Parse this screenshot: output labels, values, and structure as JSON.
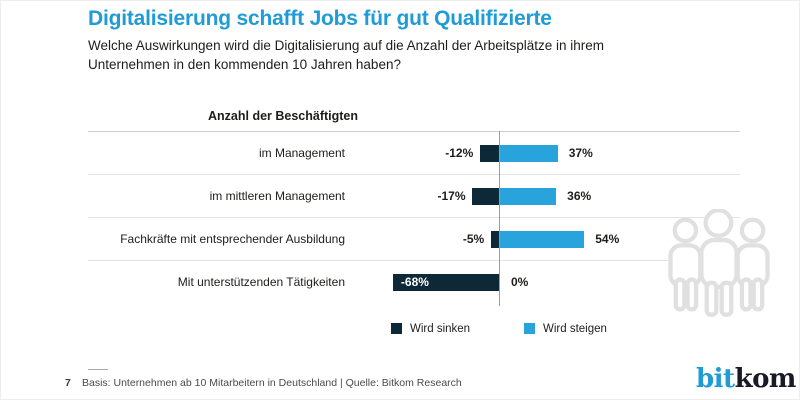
{
  "header": {
    "title": "Digitalisierung schafft Jobs für gut Qualifizierte",
    "subtitle_lines": [
      "Welche Auswirkungen wird die Digitalisierung auf die Anzahl der Arbeitsplätze in ihrem",
      "Unternehmen in den kommenden 10 Jahren haben?"
    ]
  },
  "chart_data": {
    "type": "bar",
    "orientation": "horizontal",
    "title": "Anzahl der Beschäftigten",
    "value_unit": "%",
    "axis": {
      "zero_line": true,
      "xlim": [
        -80,
        60
      ],
      "gridlines": false
    },
    "legend_position": "bottom",
    "categories": [
      "im Management",
      "im mittleren Management",
      "Fachkräfte mit entsprechender Ausbildung",
      "Mit unterstützenden Tätigkeiten"
    ],
    "series": [
      {
        "name": "Wird sinken",
        "color": "#0d2836",
        "values": [
          -12,
          -17,
          -5,
          -68
        ]
      },
      {
        "name": "Wird steigen",
        "color": "#29a3dc",
        "values": [
          37,
          36,
          54,
          0
        ]
      }
    ],
    "neg_labels": [
      "-12%",
      "-17%",
      "-5%",
      "-68%"
    ],
    "pos_labels": [
      "37%",
      "36%",
      "54%",
      "0%"
    ]
  },
  "legend": {
    "items": [
      {
        "label": "Wird sinken",
        "color": "#0d2836"
      },
      {
        "label": "Wird steigen",
        "color": "#29a3dc"
      }
    ]
  },
  "footer": {
    "page_number": "7",
    "source": "Basis: Unternehmen ab 10 Mitarbeitern in Deutschland | Quelle: Bitkom Research"
  },
  "logo": {
    "part1": "bit",
    "part2": "kom"
  },
  "icons": {
    "right_margin": "people-group-icon"
  },
  "colors": {
    "accent": "#1f9bd6",
    "bar_positive": "#29a3dc",
    "bar_negative": "#0d2836",
    "text": "#1d1d1b",
    "muted_text": "#4a4a4a",
    "grid_line": "#e3e3e3",
    "axis_line": "#9b9b9b",
    "icon_gray": "#e0e0e0"
  }
}
